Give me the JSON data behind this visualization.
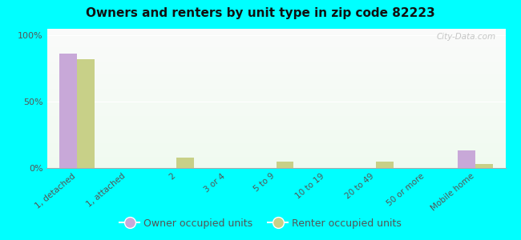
{
  "title": "Owners and renters by unit type in zip code 82223",
  "categories": [
    "1, detached",
    "1, attached",
    "2",
    "3 or 4",
    "5 to 9",
    "10 to 19",
    "20 to 49",
    "50 or more",
    "Mobile home"
  ],
  "owner_values": [
    86,
    0,
    0,
    0,
    0,
    0,
    0,
    0,
    13
  ],
  "renter_values": [
    82,
    0,
    8,
    0,
    5,
    0,
    5,
    0,
    3
  ],
  "owner_color": "#c8a8d8",
  "renter_color": "#c8d088",
  "background_color": "#00ffff",
  "ylabel_ticks": [
    "0%",
    "50%",
    "100%"
  ],
  "ytick_vals": [
    0,
    50,
    100
  ],
  "ylim": [
    0,
    105
  ],
  "bar_width": 0.35,
  "watermark": "City-Data.com",
  "legend_owner": "Owner occupied units",
  "legend_renter": "Renter occupied units"
}
